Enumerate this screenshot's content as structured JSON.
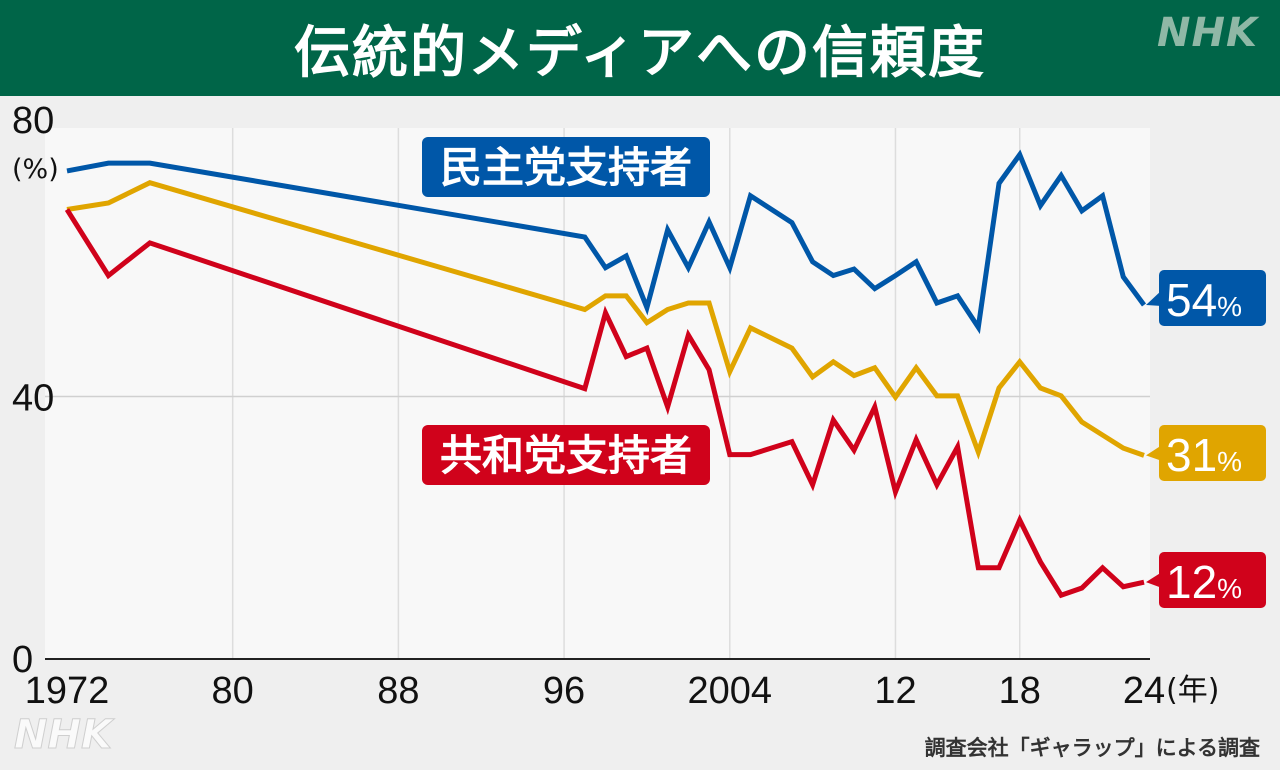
{
  "header": {
    "title": "伝統的メディアへの信頼度",
    "logo": "NHK"
  },
  "footer": {
    "source": "調査会社「ギャラップ」による調査",
    "logo": "NHK"
  },
  "chart_data": {
    "type": "line",
    "title": "伝統的メディアへの信頼度",
    "ylabel": "(%)",
    "xlabel": "(年)",
    "ylim": [
      0,
      80
    ],
    "xlim": [
      1972,
      2024
    ],
    "y_ticks": [
      {
        "value": 0,
        "label": "0"
      },
      {
        "value": 40,
        "label": "40"
      },
      {
        "value": 80,
        "label": "80"
      }
    ],
    "x_ticks": [
      {
        "value": 1972,
        "label": "1972"
      },
      {
        "value": 1980,
        "label": "80"
      },
      {
        "value": 1988,
        "label": "88"
      },
      {
        "value": 1996,
        "label": "96"
      },
      {
        "value": 2004,
        "label": "2004"
      },
      {
        "value": 2012,
        "label": "12"
      },
      {
        "value": 2018,
        "label": "18"
      },
      {
        "value": 2024,
        "label": "24"
      }
    ],
    "x": [
      1972,
      1974,
      1976,
      1997,
      1998,
      1999,
      2000,
      2001,
      2002,
      2003,
      2004,
      2005,
      2007,
      2008,
      2009,
      2010,
      2011,
      2012,
      2013,
      2014,
      2015,
      2016,
      2017,
      2018,
      2019,
      2020,
      2021,
      2022,
      2023,
      2024
    ],
    "series": [
      {
        "name": "民主党支持者",
        "color": "#0057a8",
        "end_label": "54",
        "unit": "%",
        "values": [
          74.5,
          75.7,
          75.7,
          64.4,
          59.7,
          61.5,
          53.6,
          65.5,
          59.7,
          66.7,
          59.7,
          70.7,
          66.6,
          60.6,
          58.5,
          59.5,
          56.5,
          58.5,
          60.6,
          54.3,
          55.4,
          50.6,
          72.6,
          77,
          69.2,
          73.8,
          68.4,
          70.7,
          58.3,
          54
        ]
      },
      {
        "name": "",
        "color": "#e0a500",
        "end_label": "31",
        "unit": "%",
        "values": [
          68.6,
          69.6,
          72.7,
          53.3,
          55.4,
          55.4,
          51.3,
          53.3,
          54.3,
          54.3,
          43.8,
          50.5,
          47.4,
          43,
          45.3,
          43.2,
          44.4,
          39.9,
          44.4,
          40.1,
          40.1,
          31.5,
          41.3,
          45.3,
          41.3,
          40.1,
          36.1,
          34.1,
          32.1,
          31
        ]
      },
      {
        "name": "共和党支持者",
        "color": "#d0021b",
        "end_label": "12",
        "unit": "%",
        "values": [
          68.6,
          58.5,
          63.5,
          41.2,
          52.8,
          46.1,
          47.4,
          38.4,
          49.4,
          44.1,
          31.1,
          31.1,
          33.1,
          26.5,
          36.4,
          31.8,
          38.4,
          25.4,
          33.4,
          26.5,
          32.3,
          13.8,
          13.8,
          21.1,
          14.7,
          9.6,
          10.7,
          13.8,
          10.9,
          11.6
        ]
      }
    ],
    "grid": true,
    "legend": "inline"
  }
}
